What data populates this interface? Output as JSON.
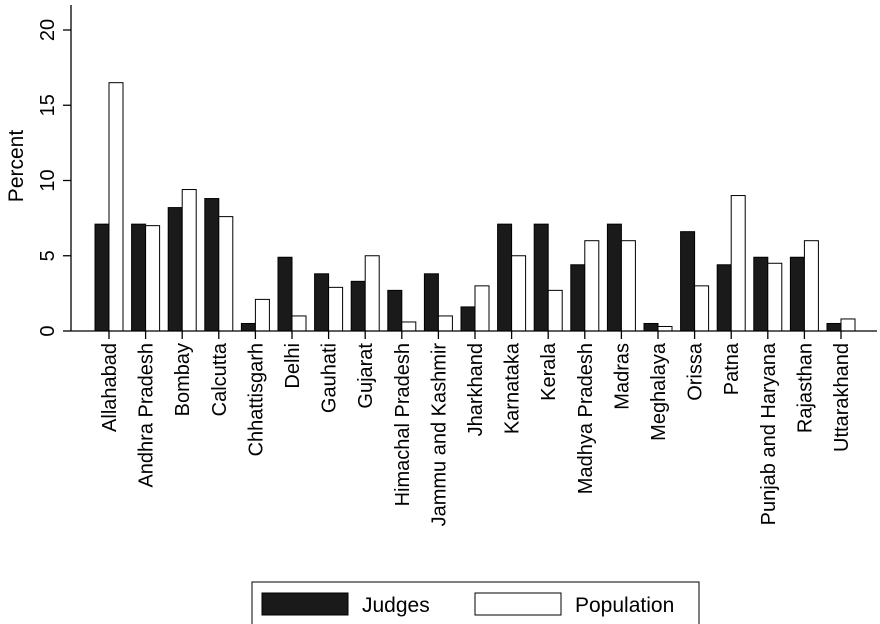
{
  "chart_data": {
    "type": "bar",
    "ylabel": "Percent",
    "xlabel": "",
    "title": "",
    "ylim": [
      0,
      21
    ],
    "yticks": [
      0,
      5,
      10,
      15,
      20
    ],
    "categories": [
      "Allahabad",
      "Andhra Pradesh",
      "Bombay",
      "Calcutta",
      "Chhattisgarh",
      "Delhi",
      "Gauhati",
      "Gujarat",
      "Himachal Pradesh",
      "Jammu and Kashmir",
      "Jharkhand",
      "Karnataka",
      "Kerala",
      "Madhya Pradesh",
      "Madras",
      "Meghalaya",
      "Orissa",
      "Patna",
      "Punjab and Haryana",
      "Rajasthan",
      "Uttarakhand"
    ],
    "series": [
      {
        "name": "Judges",
        "color": "#1a1a1a",
        "values": [
          7.1,
          7.1,
          8.2,
          8.8,
          0.5,
          4.9,
          3.8,
          3.3,
          2.7,
          3.8,
          1.6,
          7.1,
          7.1,
          4.4,
          7.1,
          0.5,
          6.6,
          4.4,
          4.9,
          4.9,
          0.5
        ]
      },
      {
        "name": "Population",
        "color": "#ffffff",
        "values": [
          16.5,
          7.0,
          9.4,
          7.6,
          2.1,
          1.0,
          2.9,
          5.0,
          0.6,
          1.0,
          3.0,
          5.0,
          2.7,
          6.0,
          6.0,
          0.3,
          3.0,
          9.0,
          4.5,
          6.0,
          0.8
        ]
      }
    ],
    "grid": false,
    "legend_position": "bottom"
  }
}
